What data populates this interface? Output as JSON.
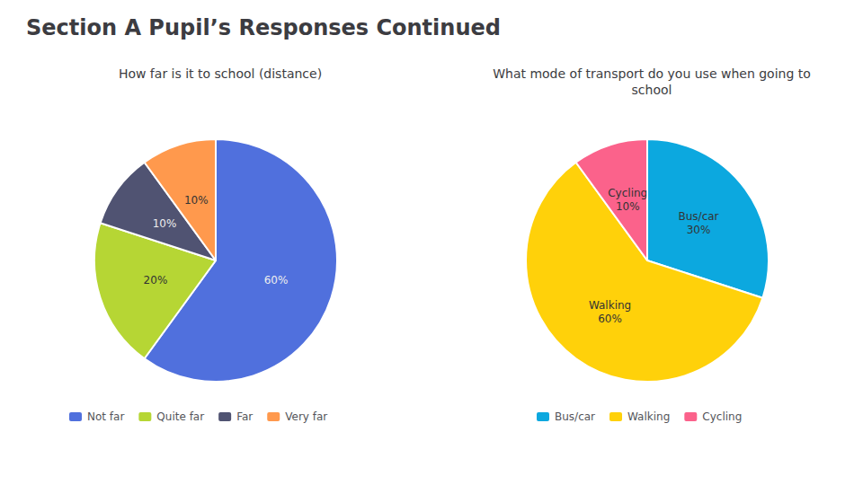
{
  "title": "Section A Pupil’s Responses Continued",
  "chart_data": [
    {
      "type": "pie",
      "title": "How far is it to school (distance)",
      "categories": [
        "Not far",
        "Quite far",
        "Far",
        "Very far"
      ],
      "values": [
        60,
        20,
        10,
        10
      ],
      "value_labels": [
        "60%",
        "20%",
        "10%",
        "10%"
      ],
      "data_labels": true,
      "legend": "bottom"
    },
    {
      "type": "pie",
      "title": "What mode of transport do you use when going to\nschool",
      "categories": [
        "Bus/car",
        "Walking",
        "Cycling"
      ],
      "values": [
        30,
        60,
        10
      ],
      "value_labels": [
        "Bus/car\n30%",
        "Walking\n60%",
        "Cycling\n10%"
      ],
      "data_labels": true,
      "legend": "bottom"
    }
  ]
}
